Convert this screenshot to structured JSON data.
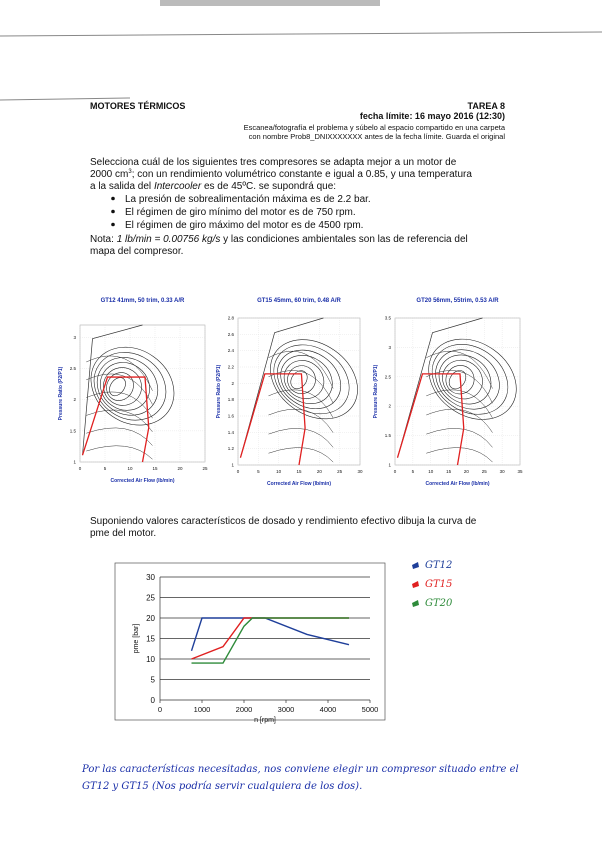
{
  "header": {
    "left": "MOTORES TÉRMICOS",
    "right": "TAREA 8",
    "deadline": "fecha límite: 16 mayo 2016 (12:30)",
    "instructions": [
      "Escanea/fotografía el problema y súbelo al espacio compartido en una carpeta",
      "con nombre Prob8_DNIXXXXXXX antes de la fecha límite. Guarda el original"
    ]
  },
  "problem": {
    "intro": [
      [
        "Selecciona cuál de los siguientes tres compresores se adapta mejor a un motor de"
      ],
      [
        "2000 cm",
        "3",
        "; con un rendimiento volumétrico constante e igual a 0.85, y una temperatura"
      ],
      [
        "a la salida del ",
        "Intercooler",
        " es de 45ºC. se supondrá que:"
      ]
    ],
    "bullets": [
      "La presión de sobrealimentación máxima es de 2.2 bar.",
      "El régimen de giro mínimo del motor es de 750 rpm.",
      "El régimen de giro máximo del motor es de 4500 rpm."
    ],
    "note": [
      "Nota: ",
      "1 lb/min = 0.00756 kg/s",
      "  y las condiciones ambientales son las de referencia del"
    ],
    "note_end": "mapa del compresor."
  },
  "maps": [
    {
      "title": "GT12 41mm, 50 trim, 0.33 A/R",
      "ylabel": "Pressure Ratio (P2/P1)",
      "xlabel": "Corrected Air Flow (lb/min)",
      "xlim": [
        0,
        25
      ],
      "ylim": [
        1,
        3.2
      ],
      "xticks": [
        0,
        5,
        10,
        15,
        20,
        25
      ],
      "yticks": [
        1,
        1.5,
        2,
        2.5,
        3
      ]
    },
    {
      "title": "GT15 45mm, 60 trim, 0.48 A/R",
      "ylabel": "Pressure Ratio (P2/P1)",
      "xlabel": "Corrected Air Flow (lb/min)",
      "xlim": [
        0,
        30
      ],
      "ylim": [
        1,
        2.8
      ],
      "xticks": [
        0,
        5,
        10,
        15,
        20,
        25,
        30
      ],
      "yticks": [
        1,
        1.2,
        1.4,
        1.6,
        1.8,
        2,
        2.2,
        2.4,
        2.6,
        2.8
      ]
    },
    {
      "title": "GT20 56mm, 55trim, 0.53 A/R",
      "ylabel": "Pressure Ratio (P2/P1)",
      "xlabel": "Corrected Air Flow (lb/min)",
      "xlim": [
        0,
        35
      ],
      "ylim": [
        1,
        3.5
      ],
      "xticks": [
        0,
        5,
        10,
        15,
        20,
        25,
        30,
        35
      ],
      "yticks": [
        1,
        1.5,
        2,
        2.5,
        3,
        3.5
      ]
    }
  ],
  "question": [
    "Suponiendo valores característicos de dosado y rendimiento efectivo dibuja la curva de",
    "pme del motor."
  ],
  "chart": {
    "type": "line",
    "xlabel": "n [rpm]",
    "ylabel": "pme [bar]",
    "xlim": [
      0,
      5000
    ],
    "ylim": [
      0,
      30
    ],
    "xticks": [
      0,
      1000,
      2000,
      3000,
      4000,
      5000
    ],
    "yticks": [
      0,
      5,
      10,
      15,
      20,
      25,
      30
    ],
    "grid": true,
    "series": [
      {
        "name": "GT12",
        "color": "#1f3f9a",
        "x": [
          750,
          1000,
          2500,
          3500,
          4500
        ],
        "values": [
          12,
          20,
          20,
          16,
          13.5
        ]
      },
      {
        "name": "GT15",
        "color": "#e02020",
        "x": [
          750,
          1500,
          2000,
          4500
        ],
        "values": [
          10,
          13,
          20,
          20
        ]
      },
      {
        "name": "GT20",
        "color": "#2e8b3a",
        "x": [
          750,
          1500,
          2000,
          2200,
          4500
        ],
        "values": [
          9,
          9,
          18,
          20,
          20
        ]
      }
    ]
  },
  "answer": [
    "Por las características necesitadas, nos conviene elegir un compresor situado entre el",
    "GT12 y GT15 (Nos podría servir cualquiera de los dos)."
  ]
}
